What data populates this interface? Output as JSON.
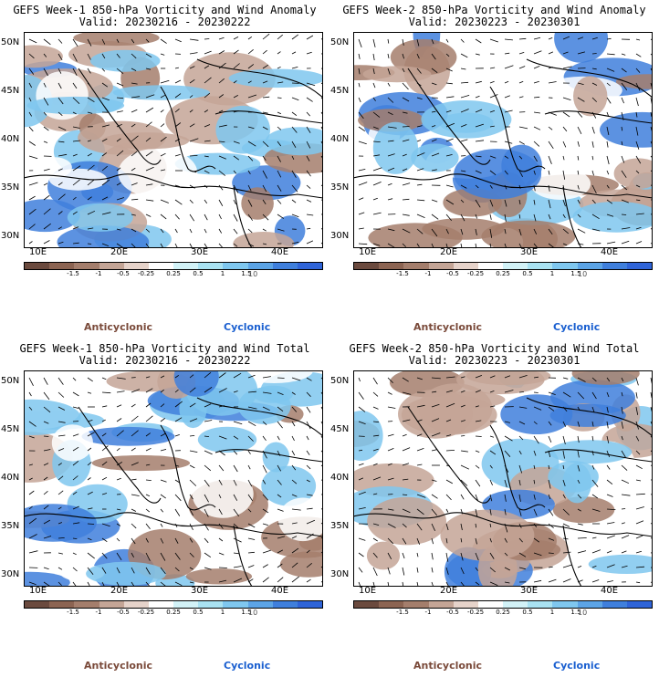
{
  "panels": [
    {
      "title_line1": "GEFS Week-1 850-hPa Vorticity and Wind Anomaly",
      "title_line2": "Valid: 20230216 - 20230222"
    },
    {
      "title_line1": "GEFS Week-2 850-hPa Vorticity and Wind Anomaly",
      "title_line2": "Valid: 20230223 - 20230301"
    },
    {
      "title_line1": "GEFS Week-1 850-hPa Vorticity and Wind Total",
      "title_line2": "Valid: 20230216 - 20230222"
    },
    {
      "title_line1": "GEFS Week-2 850-hPa Vorticity and Wind Total",
      "title_line2": "Valid: 20230223 - 20230301"
    }
  ],
  "lat_labels": [
    "50N",
    "45N",
    "40N",
    "35N",
    "30N"
  ],
  "lon_labels": [
    "10E",
    "20E",
    "30E",
    "40E"
  ],
  "colorbar": {
    "labels": [
      "-1.5",
      "-1",
      "-0.5",
      "-0.25",
      "0.25",
      "0.5",
      "1",
      "1.5"
    ],
    "unit": "10",
    "colors": [
      "#6b4a3e",
      "#8c6452",
      "#a47e6c",
      "#c4a596",
      "#e6d3ca",
      "#ffffff",
      "#d2f2f7",
      "#a9e2f2",
      "#7fc7ef",
      "#5ca4e6",
      "#3f7fdc",
      "#2f64d8"
    ]
  },
  "legend": {
    "anticyclonic": "Anticyclonic",
    "cyclonic": "Cyclonic"
  },
  "colors": {
    "brown": "#a47e6c",
    "lightbrown": "#c4a596",
    "blue": "#3f7fdc",
    "lightblue": "#7fc7ef",
    "white": "#ffffff"
  }
}
